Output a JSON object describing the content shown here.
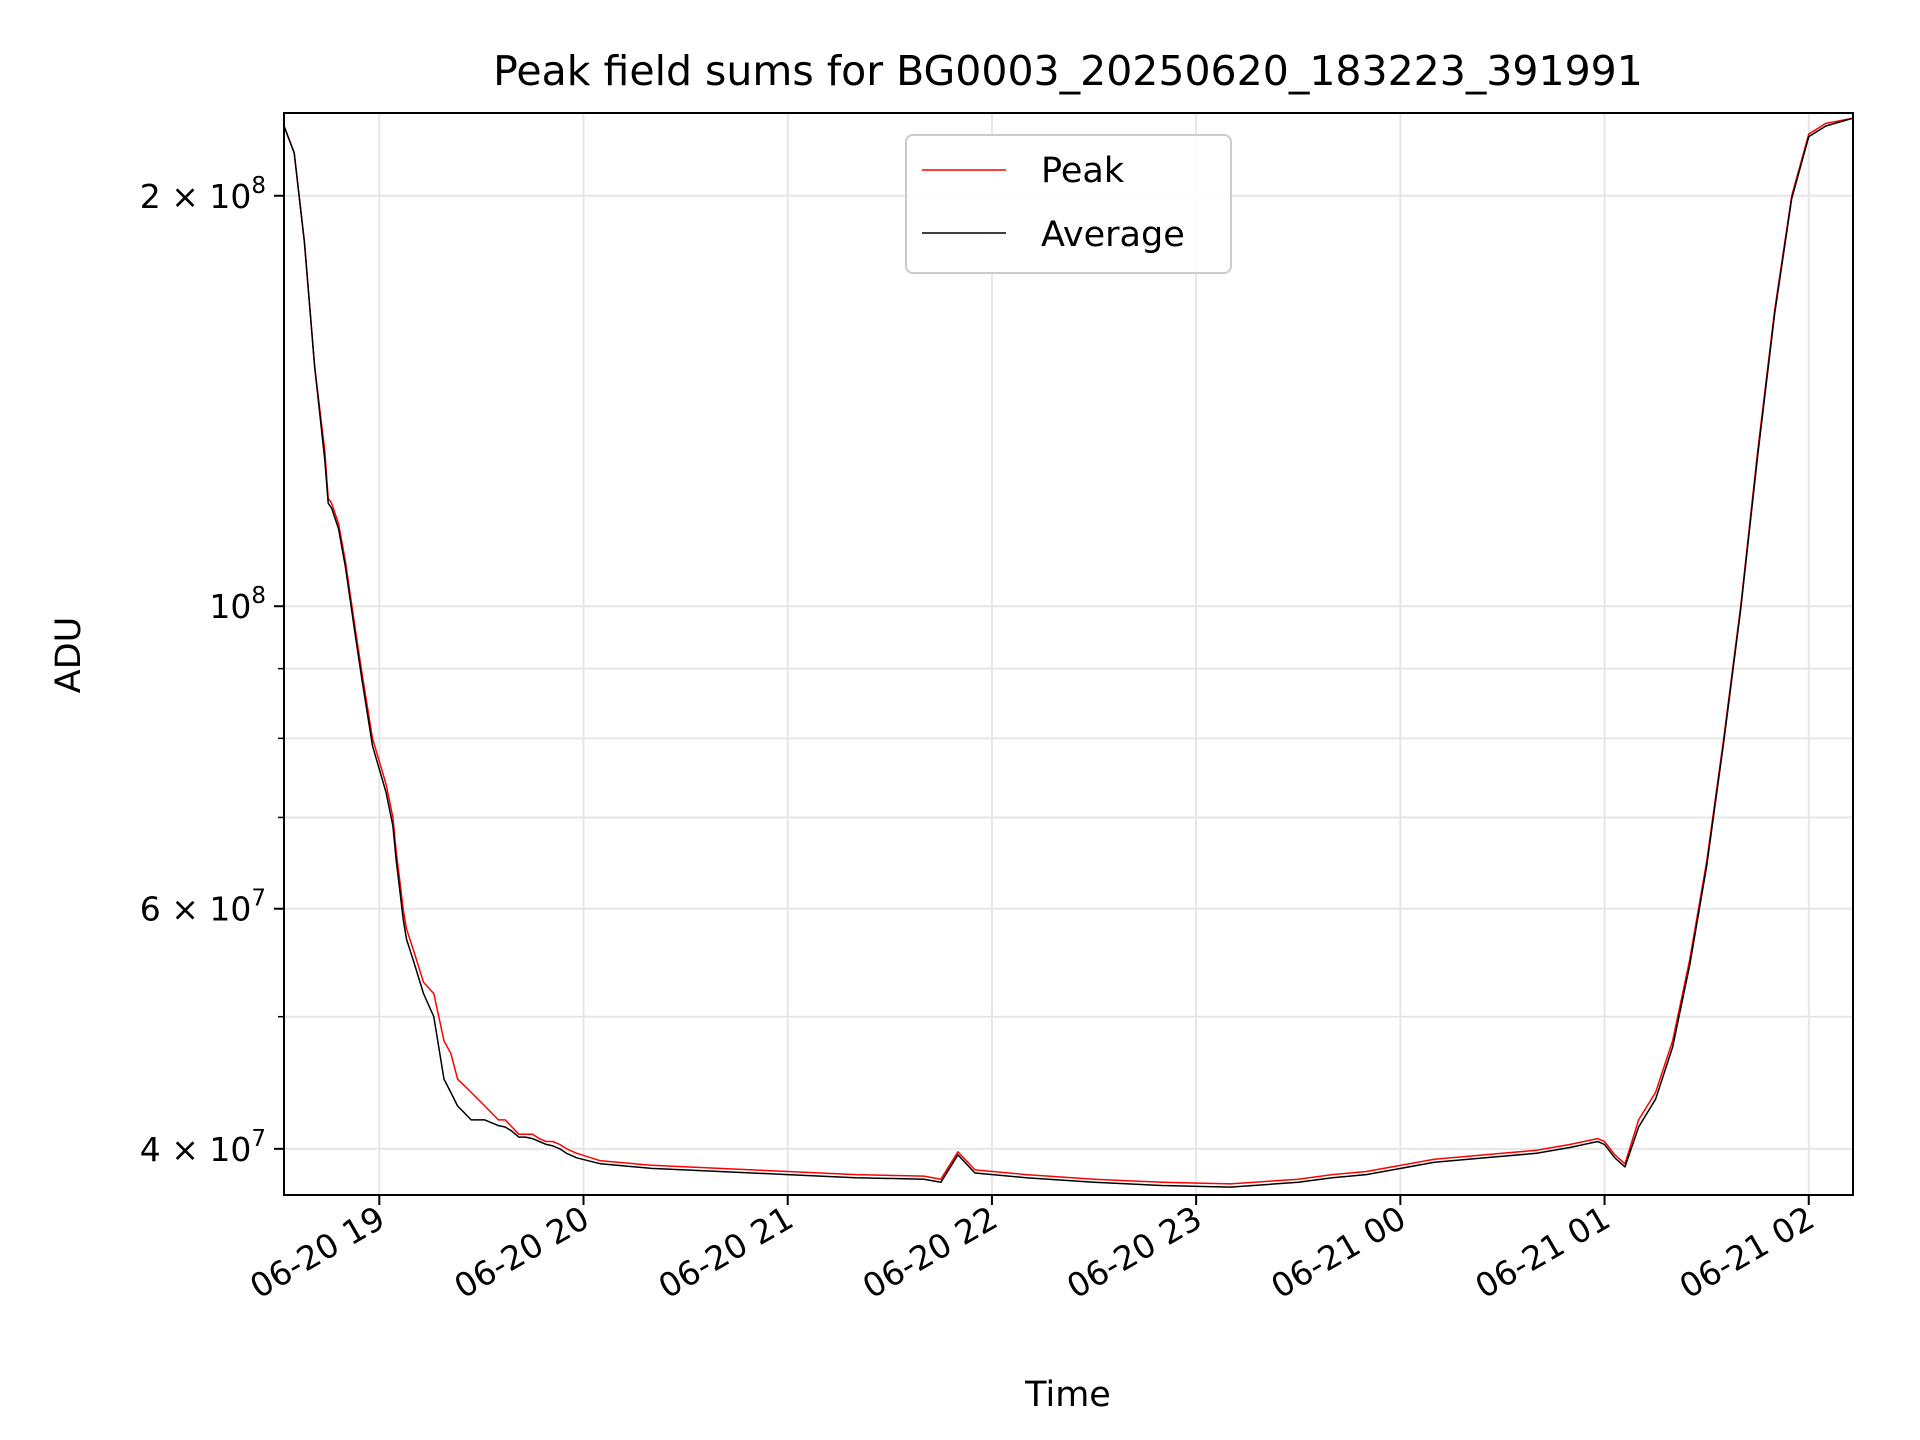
{
  "chart_data": {
    "type": "line",
    "title": "Peak field sums for BG0003_20250620_183223_391991",
    "xlabel": "Time",
    "ylabel": "ADU",
    "yscale": "log",
    "grid": true,
    "legend_position": "upper center",
    "xlim": [
      "2025-06-20 18:32",
      "2025-06-21 02:13"
    ],
    "ylim": [
      37000000,
      230000000
    ],
    "x_ticks": [
      {
        "value": "2025-06-20 19:00",
        "label": "06-20 19"
      },
      {
        "value": "2025-06-20 20:00",
        "label": "06-20 20"
      },
      {
        "value": "2025-06-20 21:00",
        "label": "06-20 21"
      },
      {
        "value": "2025-06-20 22:00",
        "label": "06-20 22"
      },
      {
        "value": "2025-06-20 23:00",
        "label": "06-20 23"
      },
      {
        "value": "2025-06-21 00:00",
        "label": "06-21 00"
      },
      {
        "value": "2025-06-21 01:00",
        "label": "06-21 01"
      },
      {
        "value": "2025-06-21 02:00",
        "label": "06-21 02"
      }
    ],
    "y_major_ticks": [
      {
        "value": 40000000,
        "base": "4",
        "exp": "7"
      },
      {
        "value": 60000000,
        "base": "6",
        "exp": "7"
      },
      {
        "value": 100000000,
        "base": "",
        "exp": "8"
      },
      {
        "value": 200000000,
        "base": "2",
        "exp": "8"
      }
    ],
    "y_minor_ticks": [
      50000000,
      70000000,
      80000000,
      90000000
    ],
    "series": [
      {
        "name": "Peak",
        "color": "#ff0000",
        "x": [
          "2025-06-20 18:32",
          "2025-06-20 18:35",
          "2025-06-20 18:38",
          "2025-06-20 18:41",
          "2025-06-20 18:44",
          "2025-06-20 18:45",
          "2025-06-20 18:46",
          "2025-06-20 18:48",
          "2025-06-20 18:50",
          "2025-06-20 18:53",
          "2025-06-20 18:55",
          "2025-06-20 18:58",
          "2025-06-20 19:02",
          "2025-06-20 19:04",
          "2025-06-20 19:05",
          "2025-06-20 19:06",
          "2025-06-20 19:07",
          "2025-06-20 19:08",
          "2025-06-20 19:10",
          "2025-06-20 19:13",
          "2025-06-20 19:16",
          "2025-06-20 19:19",
          "2025-06-20 19:21",
          "2025-06-20 19:23",
          "2025-06-20 19:25",
          "2025-06-20 19:27",
          "2025-06-20 19:29",
          "2025-06-20 19:31",
          "2025-06-20 19:33",
          "2025-06-20 19:35",
          "2025-06-20 19:37",
          "2025-06-20 19:39",
          "2025-06-20 19:41",
          "2025-06-20 19:43",
          "2025-06-20 19:45",
          "2025-06-20 19:47",
          "2025-06-20 19:49",
          "2025-06-20 19:51",
          "2025-06-20 19:53",
          "2025-06-20 19:55",
          "2025-06-20 19:58",
          "2025-06-20 20:05",
          "2025-06-20 20:20",
          "2025-06-20 20:40",
          "2025-06-20 21:00",
          "2025-06-20 21:20",
          "2025-06-20 21:40",
          "2025-06-20 21:45",
          "2025-06-20 21:50",
          "2025-06-20 21:55",
          "2025-06-20 22:10",
          "2025-06-20 22:30",
          "2025-06-20 22:50",
          "2025-06-20 23:10",
          "2025-06-20 23:30",
          "2025-06-20 23:40",
          "2025-06-20 23:50",
          "2025-06-21 00:10",
          "2025-06-21 00:30",
          "2025-06-21 00:40",
          "2025-06-21 00:50",
          "2025-06-21 00:58",
          "2025-06-21 01:00",
          "2025-06-21 01:03",
          "2025-06-21 01:06",
          "2025-06-21 01:10",
          "2025-06-21 01:15",
          "2025-06-21 01:20",
          "2025-06-21 01:25",
          "2025-06-21 01:30",
          "2025-06-21 01:35",
          "2025-06-21 01:40",
          "2025-06-21 01:45",
          "2025-06-21 01:50",
          "2025-06-21 01:55",
          "2025-06-21 02:00",
          "2025-06-21 02:05",
          "2025-06-21 02:13"
        ],
        "y": [
          225000000,
          215000000,
          185000000,
          150000000,
          130000000,
          120000000,
          119000000,
          115000000,
          108000000,
          96000000,
          89000000,
          80000000,
          74000000,
          70000000,
          66000000,
          63000000,
          60000000,
          58000000,
          56000000,
          53000000,
          52000000,
          48000000,
          47000000,
          45000000,
          44500000,
          44000000,
          43500000,
          43000000,
          42500000,
          42000000,
          42000000,
          41500000,
          41000000,
          41000000,
          41000000,
          40700000,
          40500000,
          40500000,
          40300000,
          40000000,
          39700000,
          39200000,
          38900000,
          38700000,
          38500000,
          38300000,
          38200000,
          38000000,
          39800000,
          38600000,
          38300000,
          38000000,
          37800000,
          37700000,
          38000000,
          38300000,
          38500000,
          39300000,
          39700000,
          39900000,
          40300000,
          40700000,
          40500000,
          39600000,
          39000000,
          42000000,
          44000000,
          48000000,
          55000000,
          65000000,
          80000000,
          100000000,
          130000000,
          165000000,
          200000000,
          222000000,
          226000000,
          228000000
        ]
      },
      {
        "name": "Average",
        "color": "#000000",
        "x": [
          "2025-06-20 18:32",
          "2025-06-20 18:35",
          "2025-06-20 18:38",
          "2025-06-20 18:41",
          "2025-06-20 18:44",
          "2025-06-20 18:45",
          "2025-06-20 18:46",
          "2025-06-20 18:48",
          "2025-06-20 18:50",
          "2025-06-20 18:53",
          "2025-06-20 18:55",
          "2025-06-20 18:58",
          "2025-06-20 19:02",
          "2025-06-20 19:04",
          "2025-06-20 19:05",
          "2025-06-20 19:06",
          "2025-06-20 19:07",
          "2025-06-20 19:08",
          "2025-06-20 19:10",
          "2025-06-20 19:13",
          "2025-06-20 19:16",
          "2025-06-20 19:19",
          "2025-06-20 19:21",
          "2025-06-20 19:23",
          "2025-06-20 19:25",
          "2025-06-20 19:27",
          "2025-06-20 19:29",
          "2025-06-20 19:31",
          "2025-06-20 19:33",
          "2025-06-20 19:35",
          "2025-06-20 19:37",
          "2025-06-20 19:39",
          "2025-06-20 19:41",
          "2025-06-20 19:43",
          "2025-06-20 19:45",
          "2025-06-20 19:47",
          "2025-06-20 19:49",
          "2025-06-20 19:51",
          "2025-06-20 19:53",
          "2025-06-20 19:55",
          "2025-06-20 19:58",
          "2025-06-20 20:05",
          "2025-06-20 20:20",
          "2025-06-20 20:40",
          "2025-06-20 21:00",
          "2025-06-20 21:20",
          "2025-06-20 21:40",
          "2025-06-20 21:45",
          "2025-06-20 21:50",
          "2025-06-20 21:55",
          "2025-06-20 22:10",
          "2025-06-20 22:30",
          "2025-06-20 22:50",
          "2025-06-20 23:10",
          "2025-06-20 23:30",
          "2025-06-20 23:40",
          "2025-06-20 23:50",
          "2025-06-21 00:10",
          "2025-06-21 00:30",
          "2025-06-21 00:40",
          "2025-06-21 00:50",
          "2025-06-21 00:58",
          "2025-06-21 01:00",
          "2025-06-21 01:03",
          "2025-06-21 01:06",
          "2025-06-21 01:10",
          "2025-06-21 01:15",
          "2025-06-21 01:20",
          "2025-06-21 01:25",
          "2025-06-21 01:30",
          "2025-06-21 01:35",
          "2025-06-21 01:40",
          "2025-06-21 01:45",
          "2025-06-21 01:50",
          "2025-06-21 01:55",
          "2025-06-21 02:00",
          "2025-06-21 02:05",
          "2025-06-21 02:13"
        ],
        "y": [
          225000000,
          215000000,
          185000000,
          150000000,
          128000000,
          119000000,
          118000000,
          114000000,
          107000000,
          95000000,
          88000000,
          79000000,
          73000000,
          69000000,
          65000000,
          62000000,
          59000000,
          57000000,
          55000000,
          52000000,
          50000000,
          45000000,
          44000000,
          43000000,
          42500000,
          42000000,
          42000000,
          42000000,
          41800000,
          41600000,
          41500000,
          41200000,
          40800000,
          40800000,
          40700000,
          40500000,
          40300000,
          40200000,
          40000000,
          39700000,
          39400000,
          39000000,
          38700000,
          38500000,
          38300000,
          38100000,
          38000000,
          37800000,
          39600000,
          38400000,
          38100000,
          37800000,
          37600000,
          37500000,
          37800000,
          38100000,
          38300000,
          39100000,
          39500000,
          39700000,
          40100000,
          40500000,
          40300000,
          39400000,
          38800000,
          41500000,
          43500000,
          47500000,
          54500000,
          64500000,
          79500000,
          99500000,
          129000000,
          164000000,
          199000000,
          221000000,
          225000000,
          228000000
        ]
      }
    ]
  }
}
